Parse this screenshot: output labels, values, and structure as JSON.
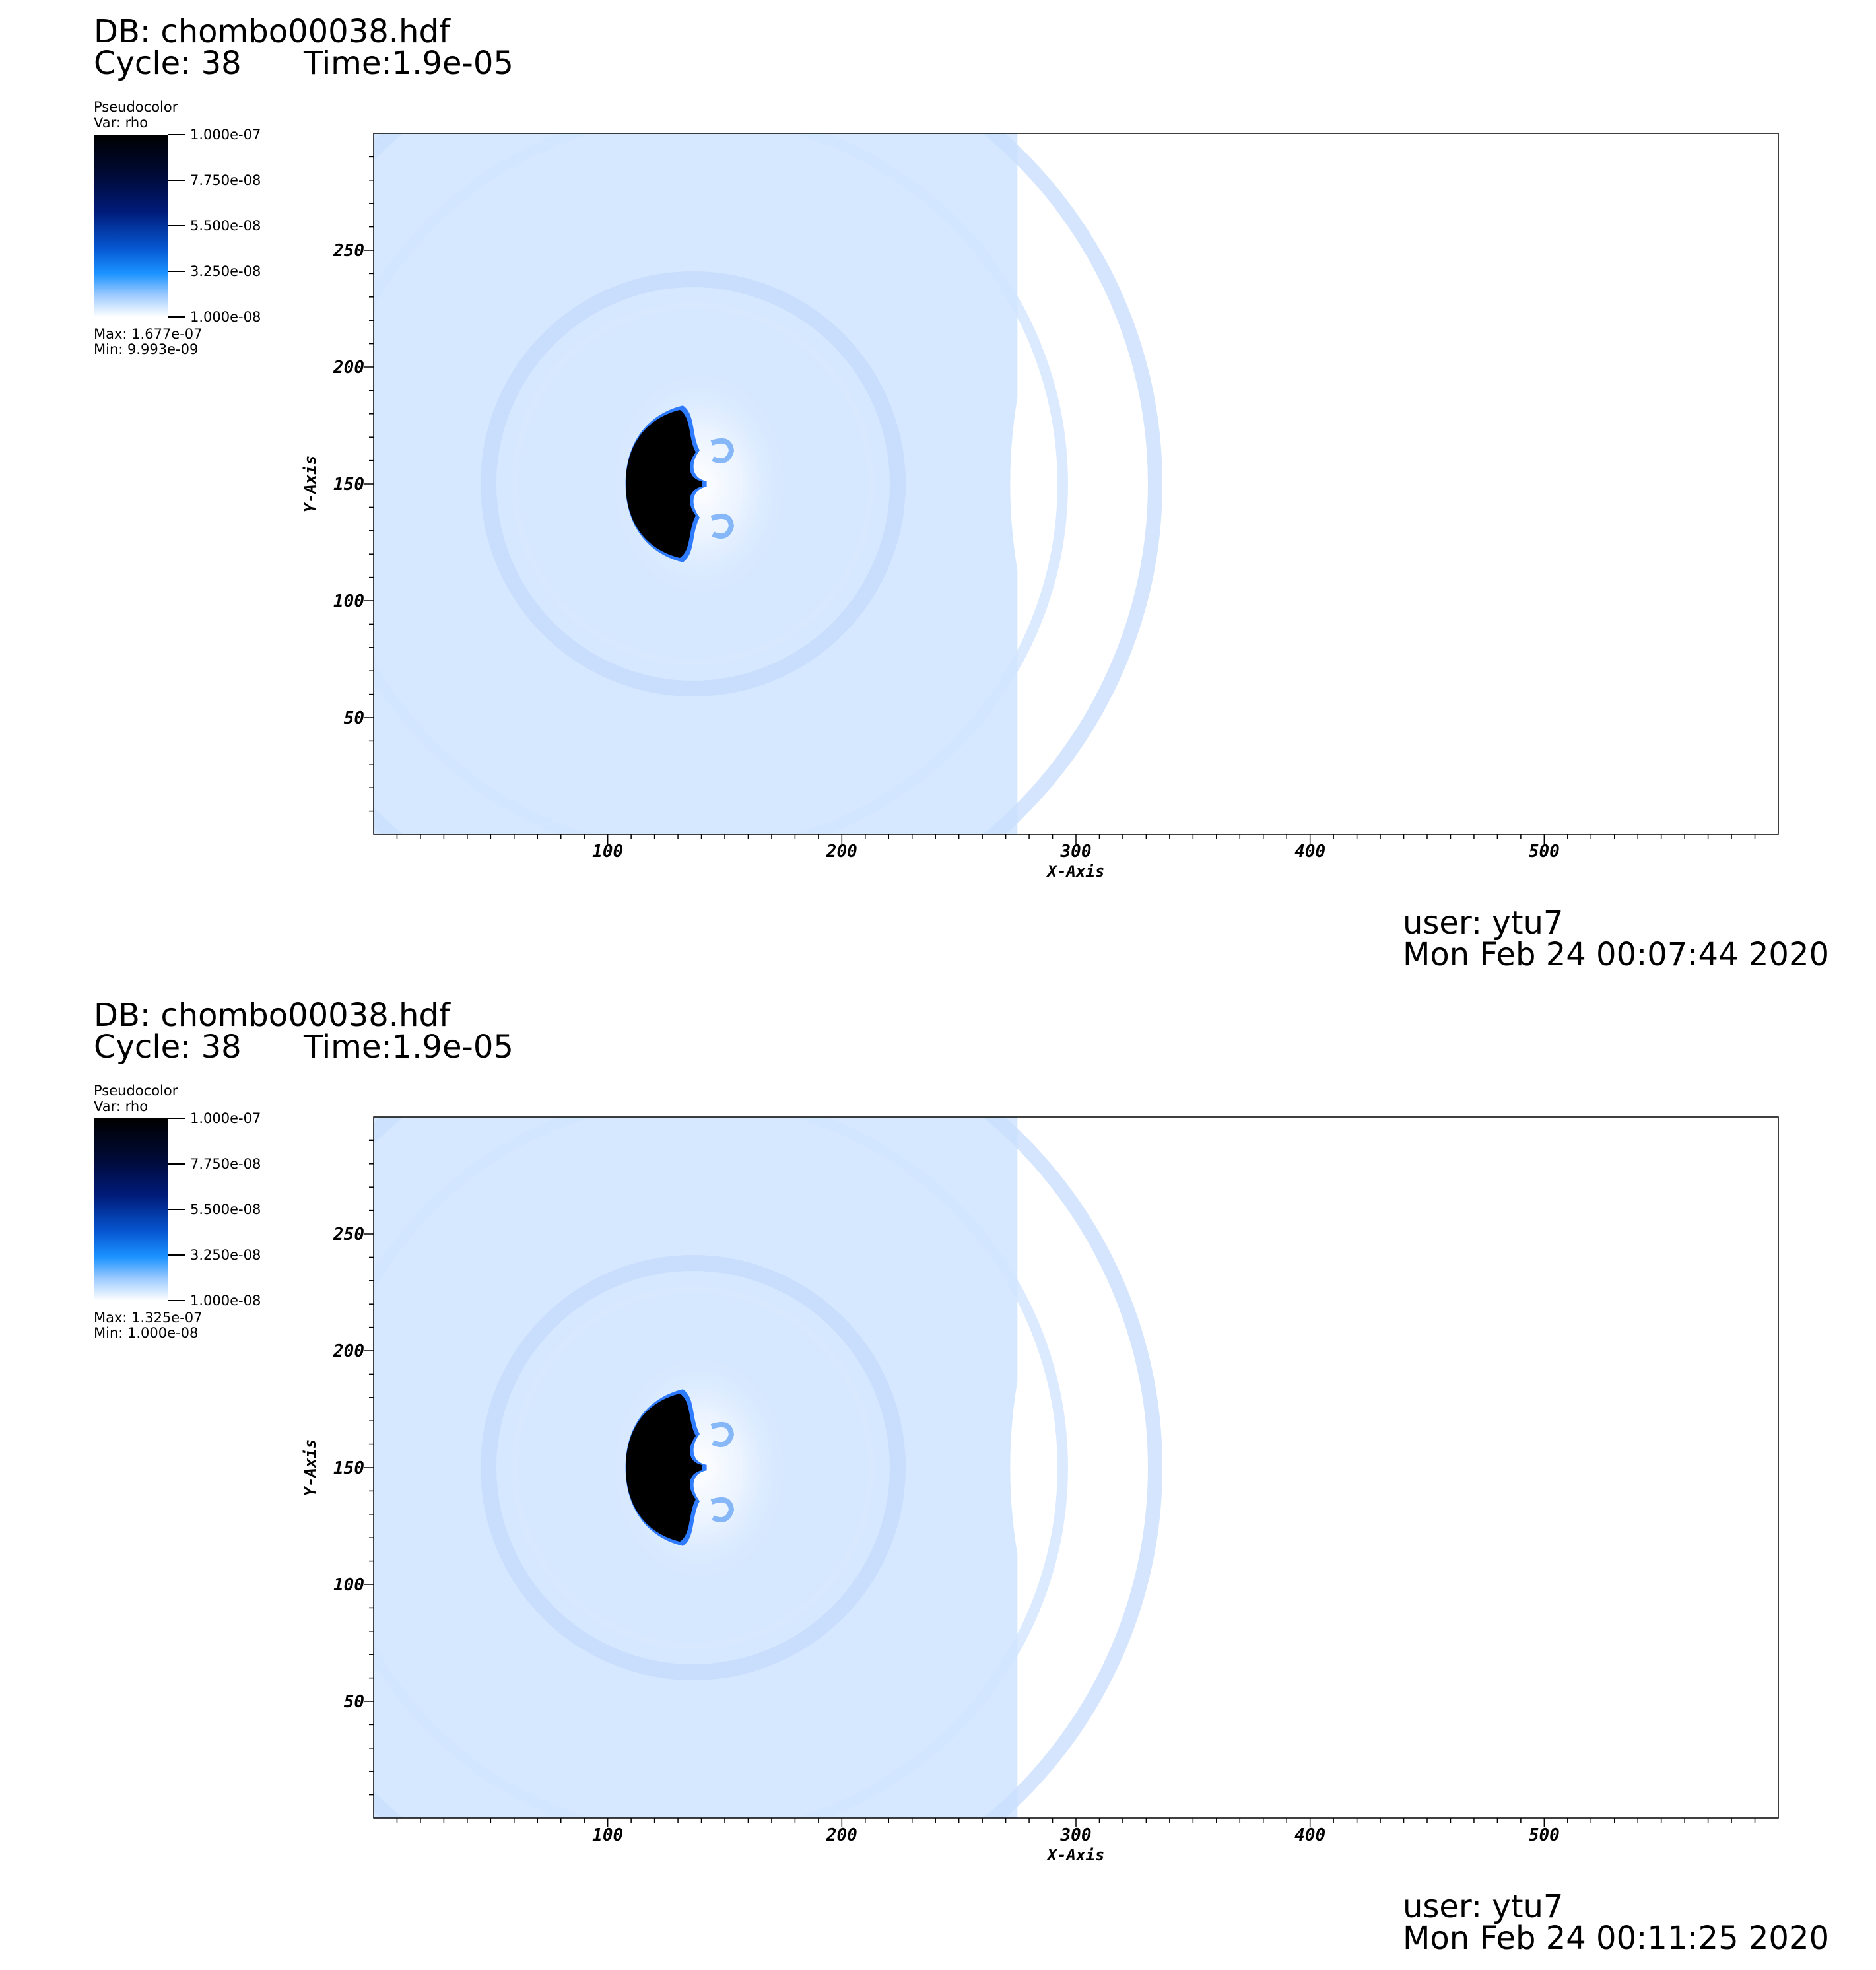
{
  "panels": [
    {
      "db_title": "DB: chombo00038.hdf",
      "cycle": "Cycle: 38",
      "time": "Time:1.9e-05",
      "legend": {
        "plot_type": "Pseudocolor",
        "variable": "Var: rho",
        "ticks": [
          "1.000e-07",
          "7.750e-08",
          "5.500e-08",
          "3.250e-08",
          "1.000e-08"
        ],
        "max": "Max:  1.677e-07",
        "min": "Min:  9.993e-09"
      },
      "user": "user: ytu7",
      "date": "Mon Feb 24 00:07:44 2020"
    },
    {
      "db_title": "DB: chombo00038.hdf",
      "cycle": "Cycle: 38",
      "time": "Time:1.9e-05",
      "legend": {
        "plot_type": "Pseudocolor",
        "variable": "Var: rho",
        "ticks": [
          "1.000e-07",
          "7.750e-08",
          "5.500e-08",
          "3.250e-08",
          "1.000e-08"
        ],
        "max": "Max:  1.325e-07",
        "min": "Min:  1.000e-08"
      },
      "user": "user: ytu7",
      "date": "Mon Feb 24 00:11:25 2020"
    }
  ],
  "chart_data": [
    {
      "type": "heatmap",
      "xlabel": "X-Axis",
      "ylabel": "Y-Axis",
      "xlim": [
        0,
        600
      ],
      "ylim": [
        0,
        300
      ],
      "x_ticks": [
        100,
        200,
        300,
        400,
        500
      ],
      "y_ticks": [
        50,
        100,
        150,
        200,
        250
      ],
      "colorbar_range": [
        1e-08,
        1e-07
      ],
      "colorbar_ticks": [
        1e-07,
        7.75e-08,
        5.5e-08,
        3.25e-08,
        1e-08
      ],
      "data_max": 1.677e-07,
      "data_min": 9.993e-09,
      "field_extent_x": [
        0,
        275
      ],
      "dense_cloud_center": [
        128,
        150
      ],
      "colors": {
        "background_field": "#d6e8ff",
        "dense_core": "#000000",
        "edge": "#1a6eff"
      }
    },
    {
      "type": "heatmap",
      "xlabel": "X-Axis",
      "ylabel": "Y-Axis",
      "xlim": [
        0,
        600
      ],
      "ylim": [
        0,
        300
      ],
      "x_ticks": [
        100,
        200,
        300,
        400,
        500
      ],
      "y_ticks": [
        50,
        100,
        150,
        200,
        250
      ],
      "colorbar_range": [
        1e-08,
        1e-07
      ],
      "colorbar_ticks": [
        1e-07,
        7.75e-08,
        5.5e-08,
        3.25e-08,
        1e-08
      ],
      "data_max": 1.325e-07,
      "data_min": 1e-08,
      "field_extent_x": [
        0,
        275
      ],
      "dense_cloud_center": [
        128,
        150
      ],
      "colors": {
        "background_field": "#d6e8ff",
        "dense_core": "#000000",
        "edge": "#1a6eff"
      }
    }
  ]
}
